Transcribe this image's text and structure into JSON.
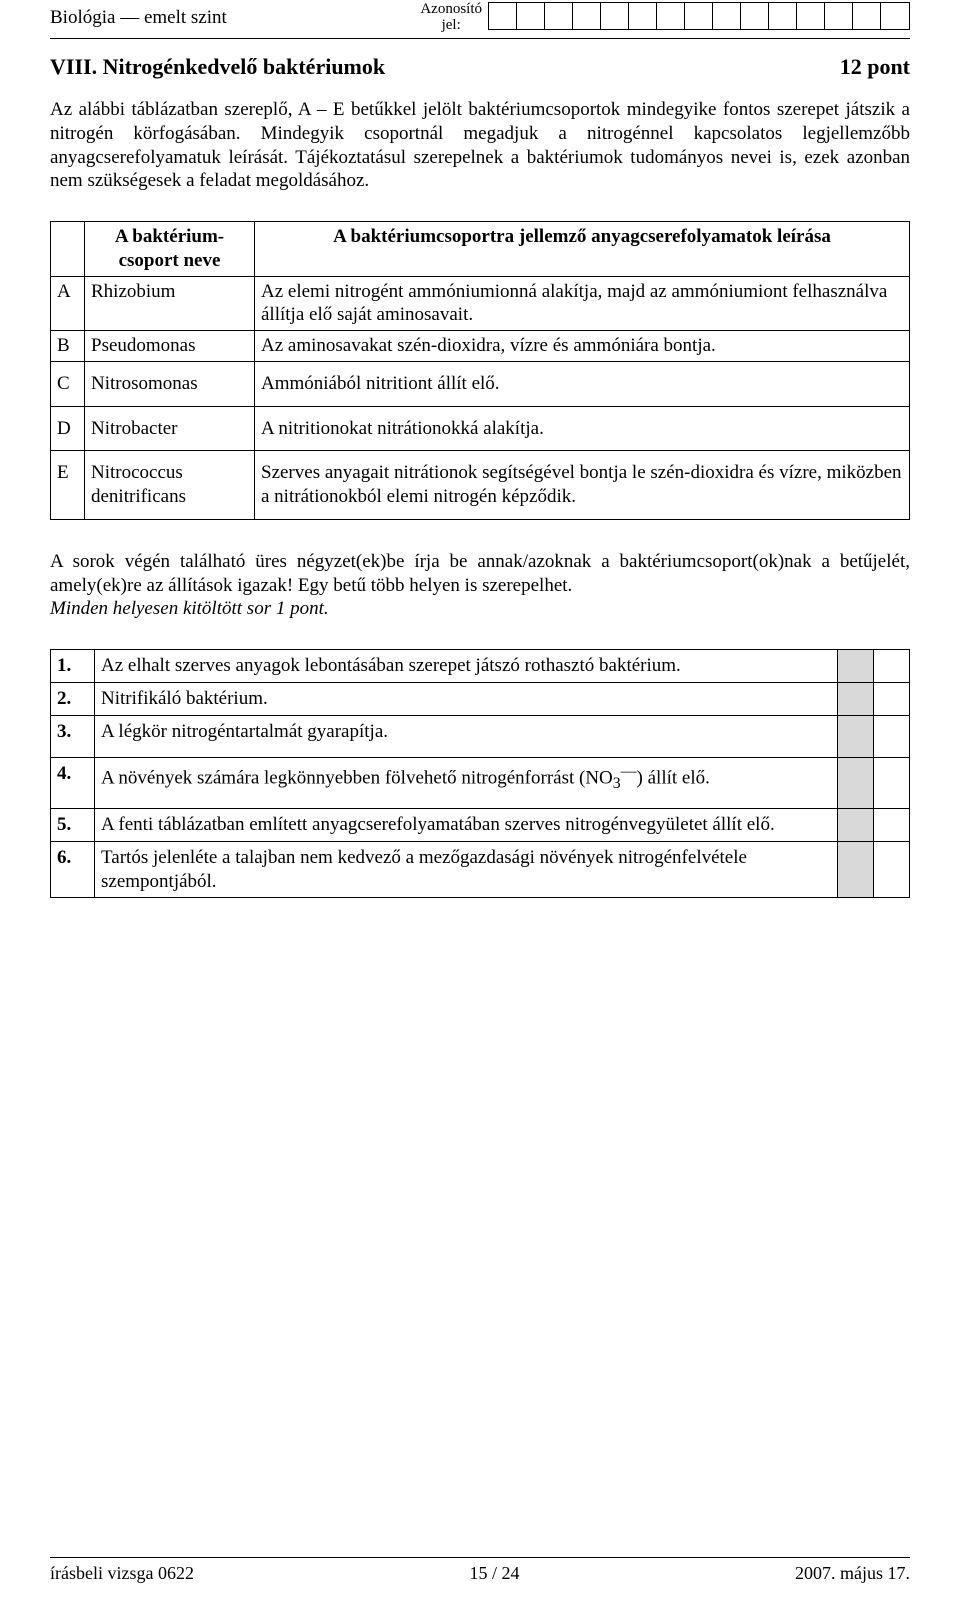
{
  "header": {
    "subject": "Biológia — emelt szint",
    "id_label_line1": "Azonosító",
    "id_label_line2": "jel:"
  },
  "title": {
    "left": "VIII. Nitrogénkedvelő baktériumok",
    "right": "12 pont"
  },
  "intro": "Az alábbi táblázatban szereplő, A – E betűkkel jelölt baktériumcsoportok mindegyike fontos szerepet játszik a nitrogén körfogásában. Mindegyik csoportnál megadjuk a nitrogénnel kapcsolatos legjellemzőbb anyagcserefolyamatuk leírását. Tájékoztatásul szerepelnek a baktériumok tudományos nevei is, ezek azonban nem szükségesek a feladat megoldásához.",
  "table1": {
    "head_name": "A baktérium-\ncsoport neve",
    "head_desc": "A baktériumcsoportra jellemző anyagcserefolyamatok leírása",
    "rows": [
      {
        "letter": "A",
        "name": "Rhizobium",
        "desc": "Az elemi nitrogént ammóniumionná alakítja, majd az ammóniumiont felhasználva állítja elő saját aminosavait."
      },
      {
        "letter": "B",
        "name": "Pseudomonas",
        "desc": "Az aminosavakat szén-dioxidra, vízre és ammóniára bontja."
      },
      {
        "letter": "C",
        "name": "Nitrosomonas",
        "desc": "Ammóniából nitritiont állít elő."
      },
      {
        "letter": "D",
        "name": "Nitrobacter",
        "desc": "A nitritionokat nitrátionokká alakítja."
      },
      {
        "letter": "E",
        "name": "Nitrococcus denitrificans",
        "desc": "Szerves anyagait nitrátionok segítségével bontja le szén-dioxidra és vízre, miközben a nitrátionokból elemi nitrogén képződik."
      }
    ]
  },
  "instructions": {
    "line1": "A sorok végén található üres négyzet(ek)be írja be annak/azoknak a baktériumcsoport(ok)nak a betűjelét, amely(ek)re az állítások igazak! Egy betű több helyen is szerepelhet.",
    "line2": "Minden helyesen kitöltött sor 1 pont."
  },
  "table2": {
    "rows": [
      {
        "n": "1.",
        "text": "Az elhalt szerves anyagok lebontásában szerepet játszó rothasztó baktérium.",
        "boxes": 2
      },
      {
        "n": "2.",
        "text": "Nitrifikáló baktérium.",
        "boxes": 2
      },
      {
        "n": "3.",
        "text": "A légkör nitrogéntartalmát gyarapítja.",
        "boxes": 2
      },
      {
        "n": "4.",
        "text_html": "A növények számára legkönnyebben fölvehető nitrogénforrást (NO<sub>3</sub><sup>—</sup>) állít elő.",
        "boxes": 2
      },
      {
        "n": "5.",
        "text": "A fenti táblázatban említett anyagcserefolyamatában szerves nitrogénvegyületet állít elő.",
        "boxes": 2
      },
      {
        "n": "6.",
        "text": "Tartós jelenléte a talajban nem kedvező a mezőgazdasági növények nitrogénfelvétele szempontjából.",
        "boxes": 2
      }
    ]
  },
  "footer": {
    "left": "írásbeli vizsga 0622",
    "center": "15 / 24",
    "right": "2007. május 17."
  }
}
